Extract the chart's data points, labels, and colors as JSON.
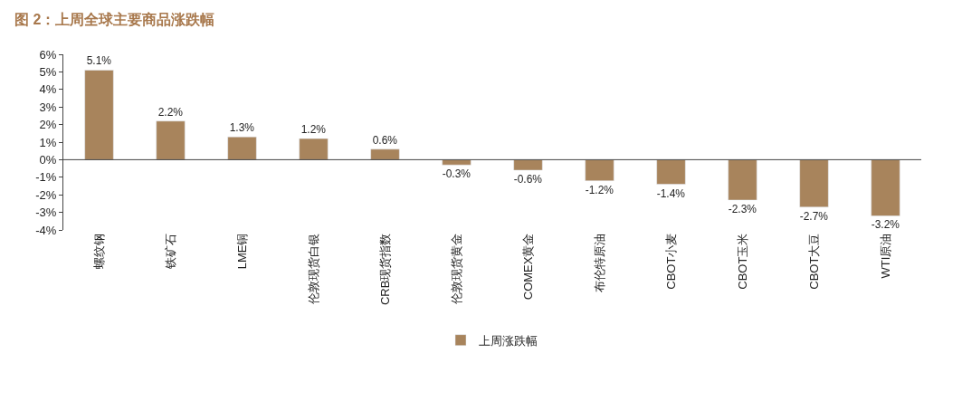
{
  "chart_data": {
    "type": "bar",
    "title": "图 2：上周全球主要商品涨跌幅",
    "categories": [
      "螺纹钢",
      "铁矿石",
      "LME铜",
      "伦敦现货白银",
      "CRB现货指数",
      "伦敦现货黄金",
      "COMEX黄金",
      "布伦特原油",
      "CBOT小麦",
      "CBOT玉米",
      "CBOT大豆",
      "WTI原油"
    ],
    "series": [
      {
        "name": "上周涨跌幅",
        "color": "#a8845c",
        "values": [
          5.1,
          2.2,
          1.3,
          1.2,
          0.6,
          -0.3,
          -0.6,
          -1.2,
          -1.4,
          -2.3,
          -2.7,
          -3.2
        ],
        "value_labels": [
          "5.1%",
          "2.2%",
          "1.3%",
          "1.2%",
          "0.6%",
          "-0.3%",
          "-0.6%",
          "-1.2%",
          "-1.4%",
          "-2.3%",
          "-2.7%",
          "-3.2%"
        ]
      }
    ],
    "ylim": [
      -4,
      6
    ],
    "yticks": [
      {
        "value": -4,
        "label": "-4%"
      },
      {
        "value": -3,
        "label": "-3%"
      },
      {
        "value": -2,
        "label": "-2%"
      },
      {
        "value": -1,
        "label": "-1%"
      },
      {
        "value": 0,
        "label": "0%"
      },
      {
        "value": 1,
        "label": "1%"
      },
      {
        "value": 2,
        "label": "2%"
      },
      {
        "value": 3,
        "label": "3%"
      },
      {
        "value": 4,
        "label": "4%"
      },
      {
        "value": 5,
        "label": "5%"
      },
      {
        "value": 6,
        "label": "6%"
      }
    ],
    "legend": "bottom"
  }
}
